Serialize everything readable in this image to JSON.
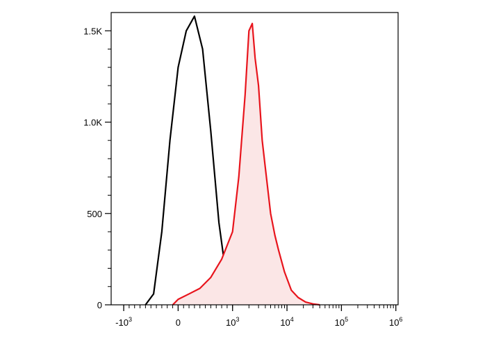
{
  "chart_data": {
    "type": "area",
    "title": "",
    "xlabel": "",
    "ylabel": "",
    "x_scale": "biexponential",
    "ylim": [
      0,
      1600
    ],
    "grid": false,
    "legend": "none",
    "y_ticks": [
      {
        "value": 0,
        "label": "0"
      },
      {
        "value": 500,
        "label": "500"
      },
      {
        "value": 1000,
        "label": "1.0K"
      },
      {
        "value": 1500,
        "label": "1.5K"
      }
    ],
    "x_ticks": [
      {
        "value": -1000,
        "base": "-10",
        "exp": "3"
      },
      {
        "value": 0,
        "base": "0",
        "exp": ""
      },
      {
        "value": 1000,
        "base": "10",
        "exp": "3"
      },
      {
        "value": 10000,
        "base": "10",
        "exp": "4"
      },
      {
        "value": 100000,
        "base": "10",
        "exp": "5"
      },
      {
        "value": 1000000,
        "base": "10",
        "exp": "6"
      }
    ],
    "series": [
      {
        "color": "#000000",
        "fill": "none",
        "x": [
          -600,
          -450,
          -300,
          -150,
          0,
          150,
          300,
          450,
          600,
          750,
          900,
          1100,
          1300
        ],
        "y": [
          0,
          60,
          400,
          900,
          1300,
          1500,
          1580,
          1400,
          950,
          450,
          120,
          20,
          0
        ]
      },
      {
        "color": "#e8141c",
        "fill": "#fbe6e6",
        "x": [
          -100,
          0,
          200,
          400,
          600,
          800,
          1000,
          1300,
          1700,
          2000,
          2300,
          2600,
          3000,
          3500,
          4000,
          5000,
          6000,
          7000,
          9000,
          12000,
          16000,
          22000,
          30000,
          40000
        ],
        "y": [
          0,
          30,
          60,
          90,
          150,
          250,
          400,
          700,
          1150,
          1500,
          1540,
          1350,
          1200,
          900,
          750,
          500,
          380,
          300,
          180,
          80,
          40,
          15,
          5,
          0
        ]
      }
    ]
  }
}
